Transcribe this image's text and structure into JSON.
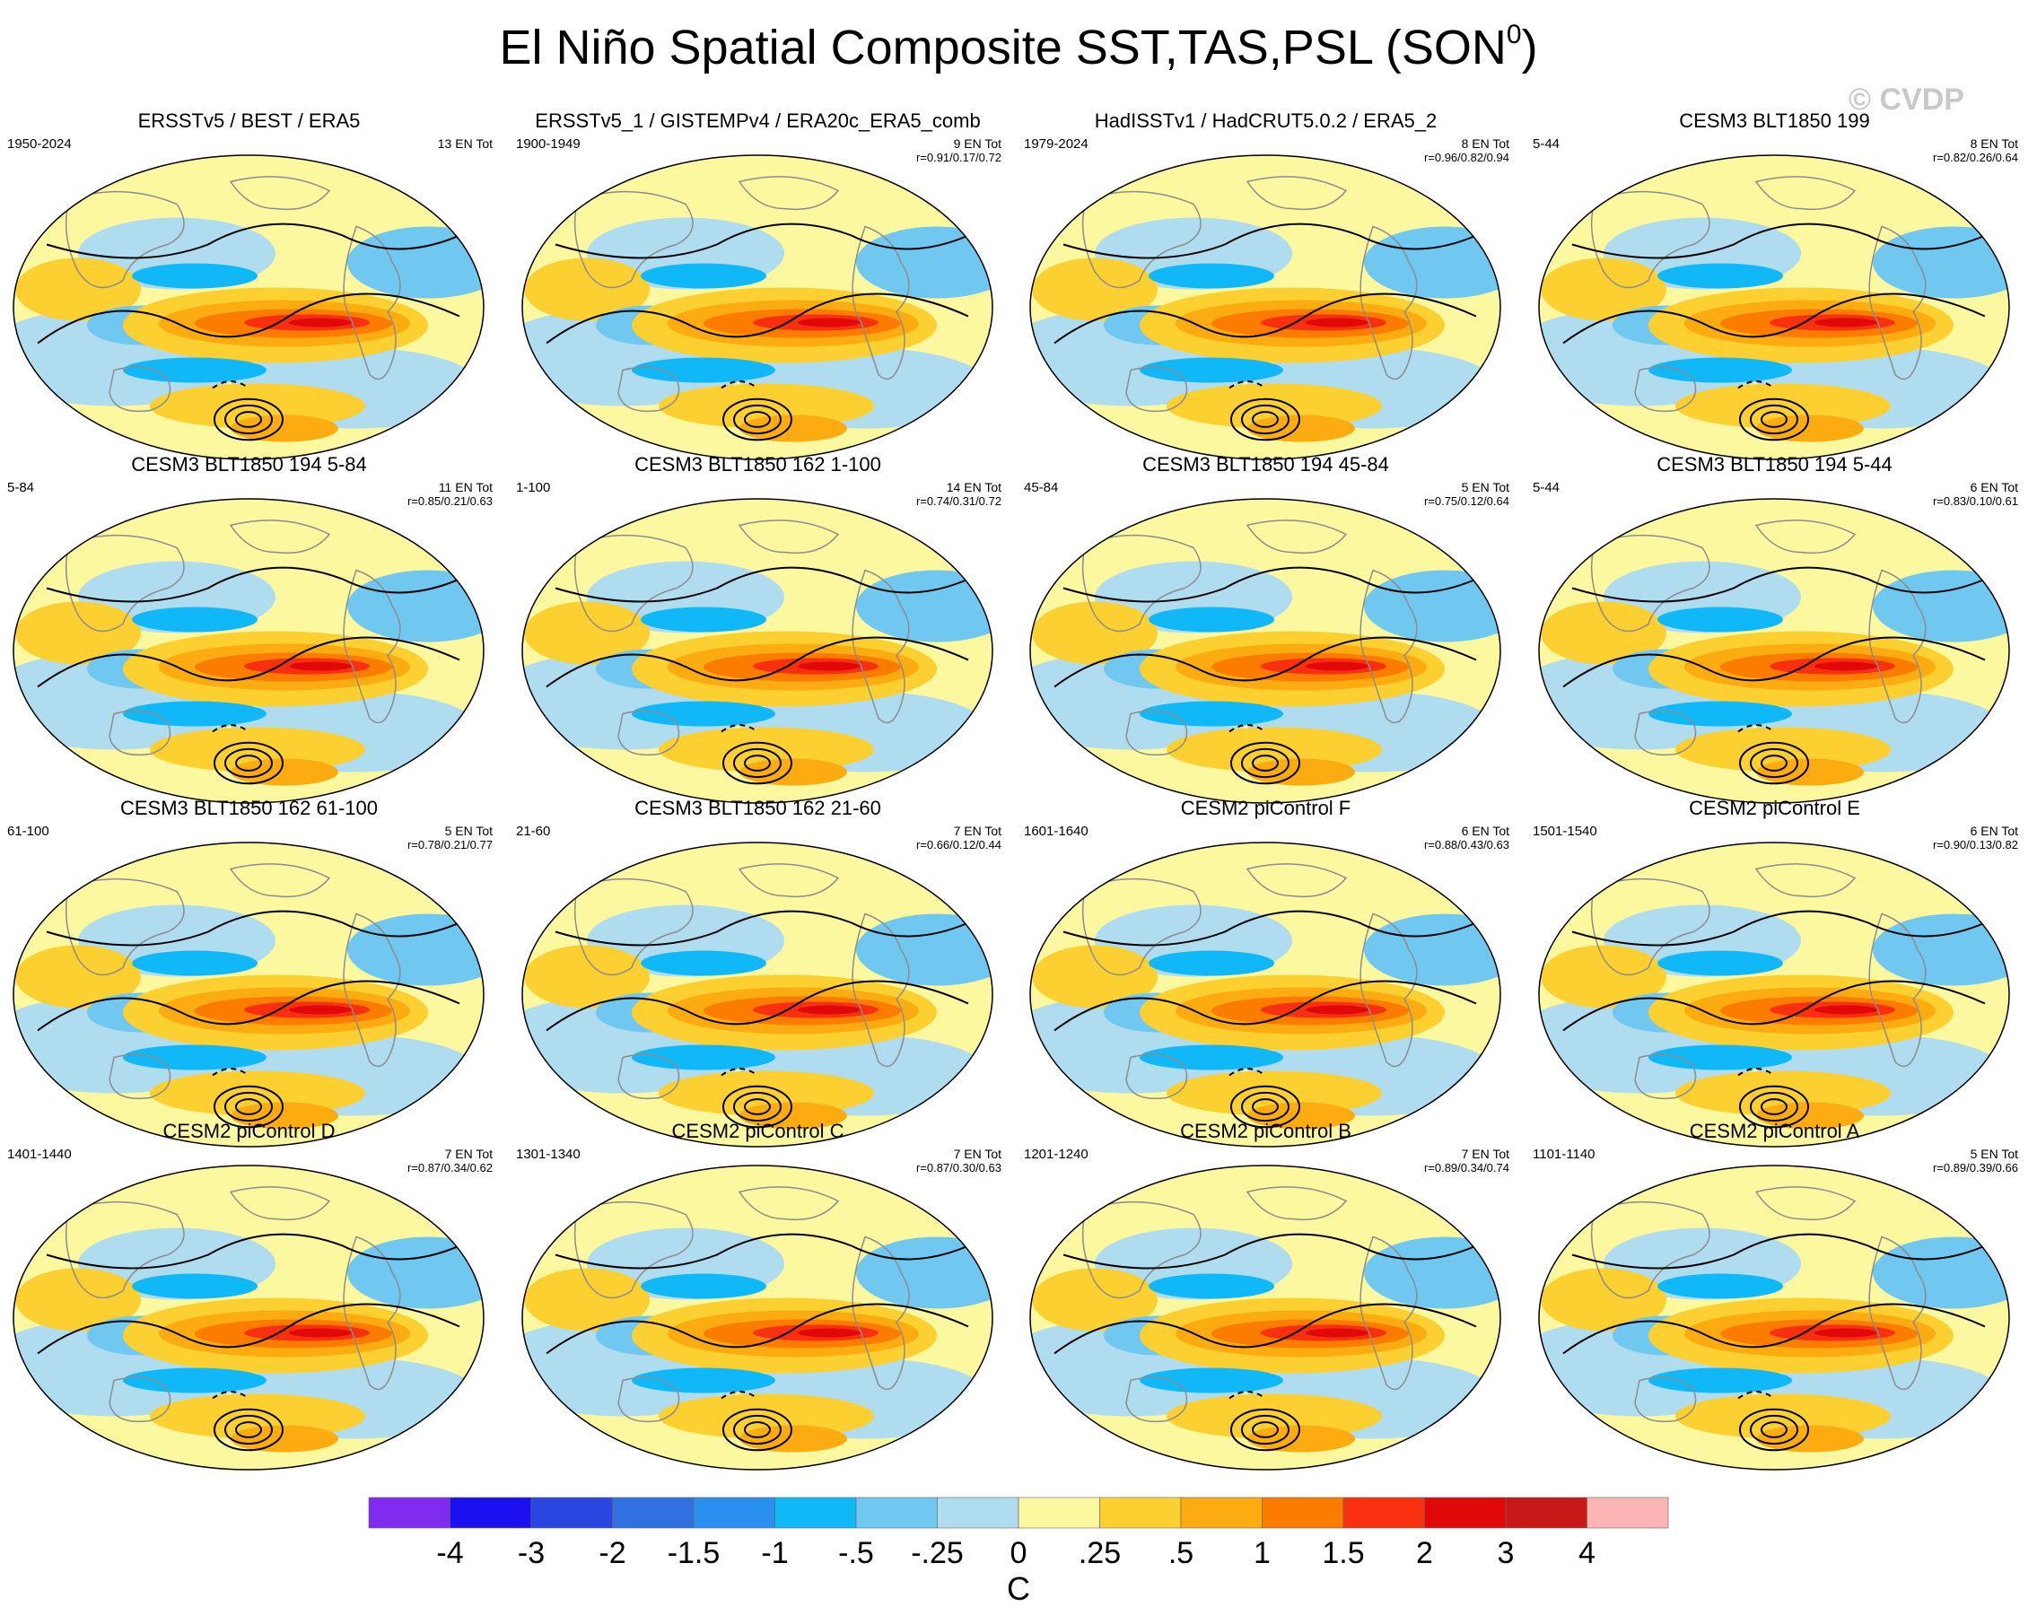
{
  "title": {
    "main": "El Niño Spatial Composite SST,TAS,PSL (SON",
    "superscript": "0",
    "close": ")"
  },
  "watermark": "© CVDP",
  "panels": [
    {
      "title": "ERSSTv5 / BEST / ERA5",
      "years": "1950-2024",
      "count": "13 EN Tot",
      "corr": ""
    },
    {
      "title": "ERSSTv5_1 / GISTEMPv4 / ERA20c_ERA5_comb",
      "years": "1900-1949",
      "count": "9 EN Tot",
      "corr": "r=0.91/0.17/0.72"
    },
    {
      "title": "HadISSTv1 / HadCRUT5.0.2 / ERA5_2",
      "years": "1979-2024",
      "count": "8 EN Tot",
      "corr": "r=0.96/0.82/0.94"
    },
    {
      "title": "CESM3 BLT1850 199",
      "years": "5-44",
      "count": "8 EN Tot",
      "corr": "r=0.82/0.26/0.64"
    },
    {
      "title": "CESM3 BLT1850 194 5-84",
      "years": "5-84",
      "count": "11 EN Tot",
      "corr": "r=0.85/0.21/0.63"
    },
    {
      "title": "CESM3 BLT1850 162 1-100",
      "years": "1-100",
      "count": "14 EN Tot",
      "corr": "r=0.74/0.31/0.72"
    },
    {
      "title": "CESM3 BLT1850 194 45-84",
      "years": "45-84",
      "count": "5 EN Tot",
      "corr": "r=0.75/0.12/0.64"
    },
    {
      "title": "CESM3 BLT1850 194 5-44",
      "years": "5-44",
      "count": "6 EN Tot",
      "corr": "r=0.83/0.10/0.61"
    },
    {
      "title": "CESM3 BLT1850 162 61-100",
      "years": "61-100",
      "count": "5 EN Tot",
      "corr": "r=0.78/0.21/0.77"
    },
    {
      "title": "CESM3 BLT1850 162 21-60",
      "years": "21-60",
      "count": "7 EN Tot",
      "corr": "r=0.66/0.12/0.44"
    },
    {
      "title": "CESM2 piControl F",
      "years": "1601-1640",
      "count": "6 EN Tot",
      "corr": "r=0.88/0.43/0.63"
    },
    {
      "title": "CESM2 piControl E",
      "years": "1501-1540",
      "count": "6 EN Tot",
      "corr": "r=0.90/0.13/0.82"
    },
    {
      "title": "CESM2 piControl D",
      "years": "1401-1440",
      "count": "7 EN Tot",
      "corr": "r=0.87/0.34/0.62"
    },
    {
      "title": "CESM2 piControl C",
      "years": "1301-1340",
      "count": "7 EN Tot",
      "corr": "r=0.87/0.30/0.63"
    },
    {
      "title": "CESM2 piControl B",
      "years": "1201-1240",
      "count": "7 EN Tot",
      "corr": "r=0.89/0.34/0.74"
    },
    {
      "title": "CESM2 piControl A",
      "years": "1101-1140",
      "count": "5 EN Tot",
      "corr": "r=0.89/0.39/0.66"
    }
  ],
  "colorbar": {
    "labels": [
      "-4",
      "-3",
      "-2",
      "-1.5",
      "-1",
      "-.5",
      "-.25",
      "0",
      ".25",
      ".5",
      "1",
      "1.5",
      "2",
      "3",
      "4"
    ],
    "colors": [
      "#7f2bf0",
      "#1a10f0",
      "#2b45e0",
      "#3070e0",
      "#2a90f0",
      "#10b8f8",
      "#70c8f0",
      "#b0dcf0",
      "#fcf8a0",
      "#fcd030",
      "#fcac10",
      "#fc7c00",
      "#f83010",
      "#e00808",
      "#c81818",
      "#fcb4b4"
    ],
    "unit": "C"
  }
}
